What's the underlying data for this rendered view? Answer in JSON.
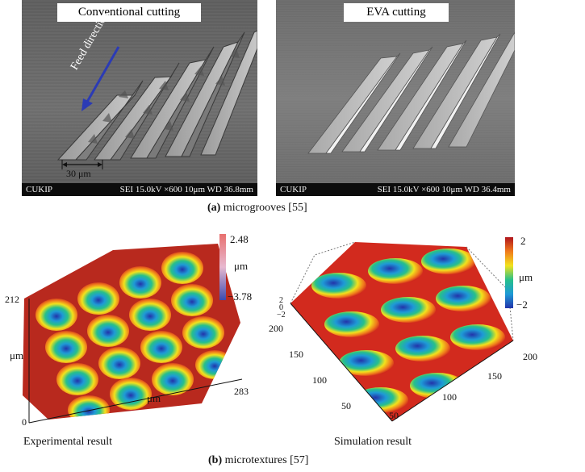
{
  "panel_a": {
    "left_image": {
      "title": "Conventional cutting",
      "arrow_label": "Feed direction",
      "scale_label": "30 μm",
      "info_left": "CUKIP",
      "info_right": "SEI  15.0kV  ×600  10μm  WD 36.8mm"
    },
    "right_image": {
      "title": "EVA cutting",
      "info_left": "CUKIP",
      "info_right": "SEI  15.0kV  ×600  10μm  WD 36.4mm"
    },
    "caption_letter": "(a)",
    "caption_text": " microgrooves [55]"
  },
  "panel_b": {
    "left_plot": {
      "colorbar_max": "2.48",
      "colorbar_unit": "μm",
      "colorbar_min": "−3.78",
      "y_tick_top": "212",
      "y_tick_zero": "0",
      "y_unit": "μm",
      "x_tick_end": "283",
      "x_unit": "μm",
      "label": "Experimental result"
    },
    "right_plot": {
      "colorbar_max": "2",
      "colorbar_unit": "μm",
      "colorbar_min": "−2",
      "z_ticks": [
        "2",
        "0",
        "−2"
      ],
      "y_ticks": [
        "200",
        "150",
        "100",
        "50"
      ],
      "x_ticks": [
        "50",
        "100",
        "150",
        "200"
      ],
      "label": "Simulation result"
    },
    "caption_letter": "(b)",
    "caption_text": " microtextures [57]"
  },
  "colors": {
    "colormap": [
      "#2233aa",
      "#1e9ad6",
      "#27c08a",
      "#f2e21c",
      "#f07a1c",
      "#c0161c"
    ]
  }
}
